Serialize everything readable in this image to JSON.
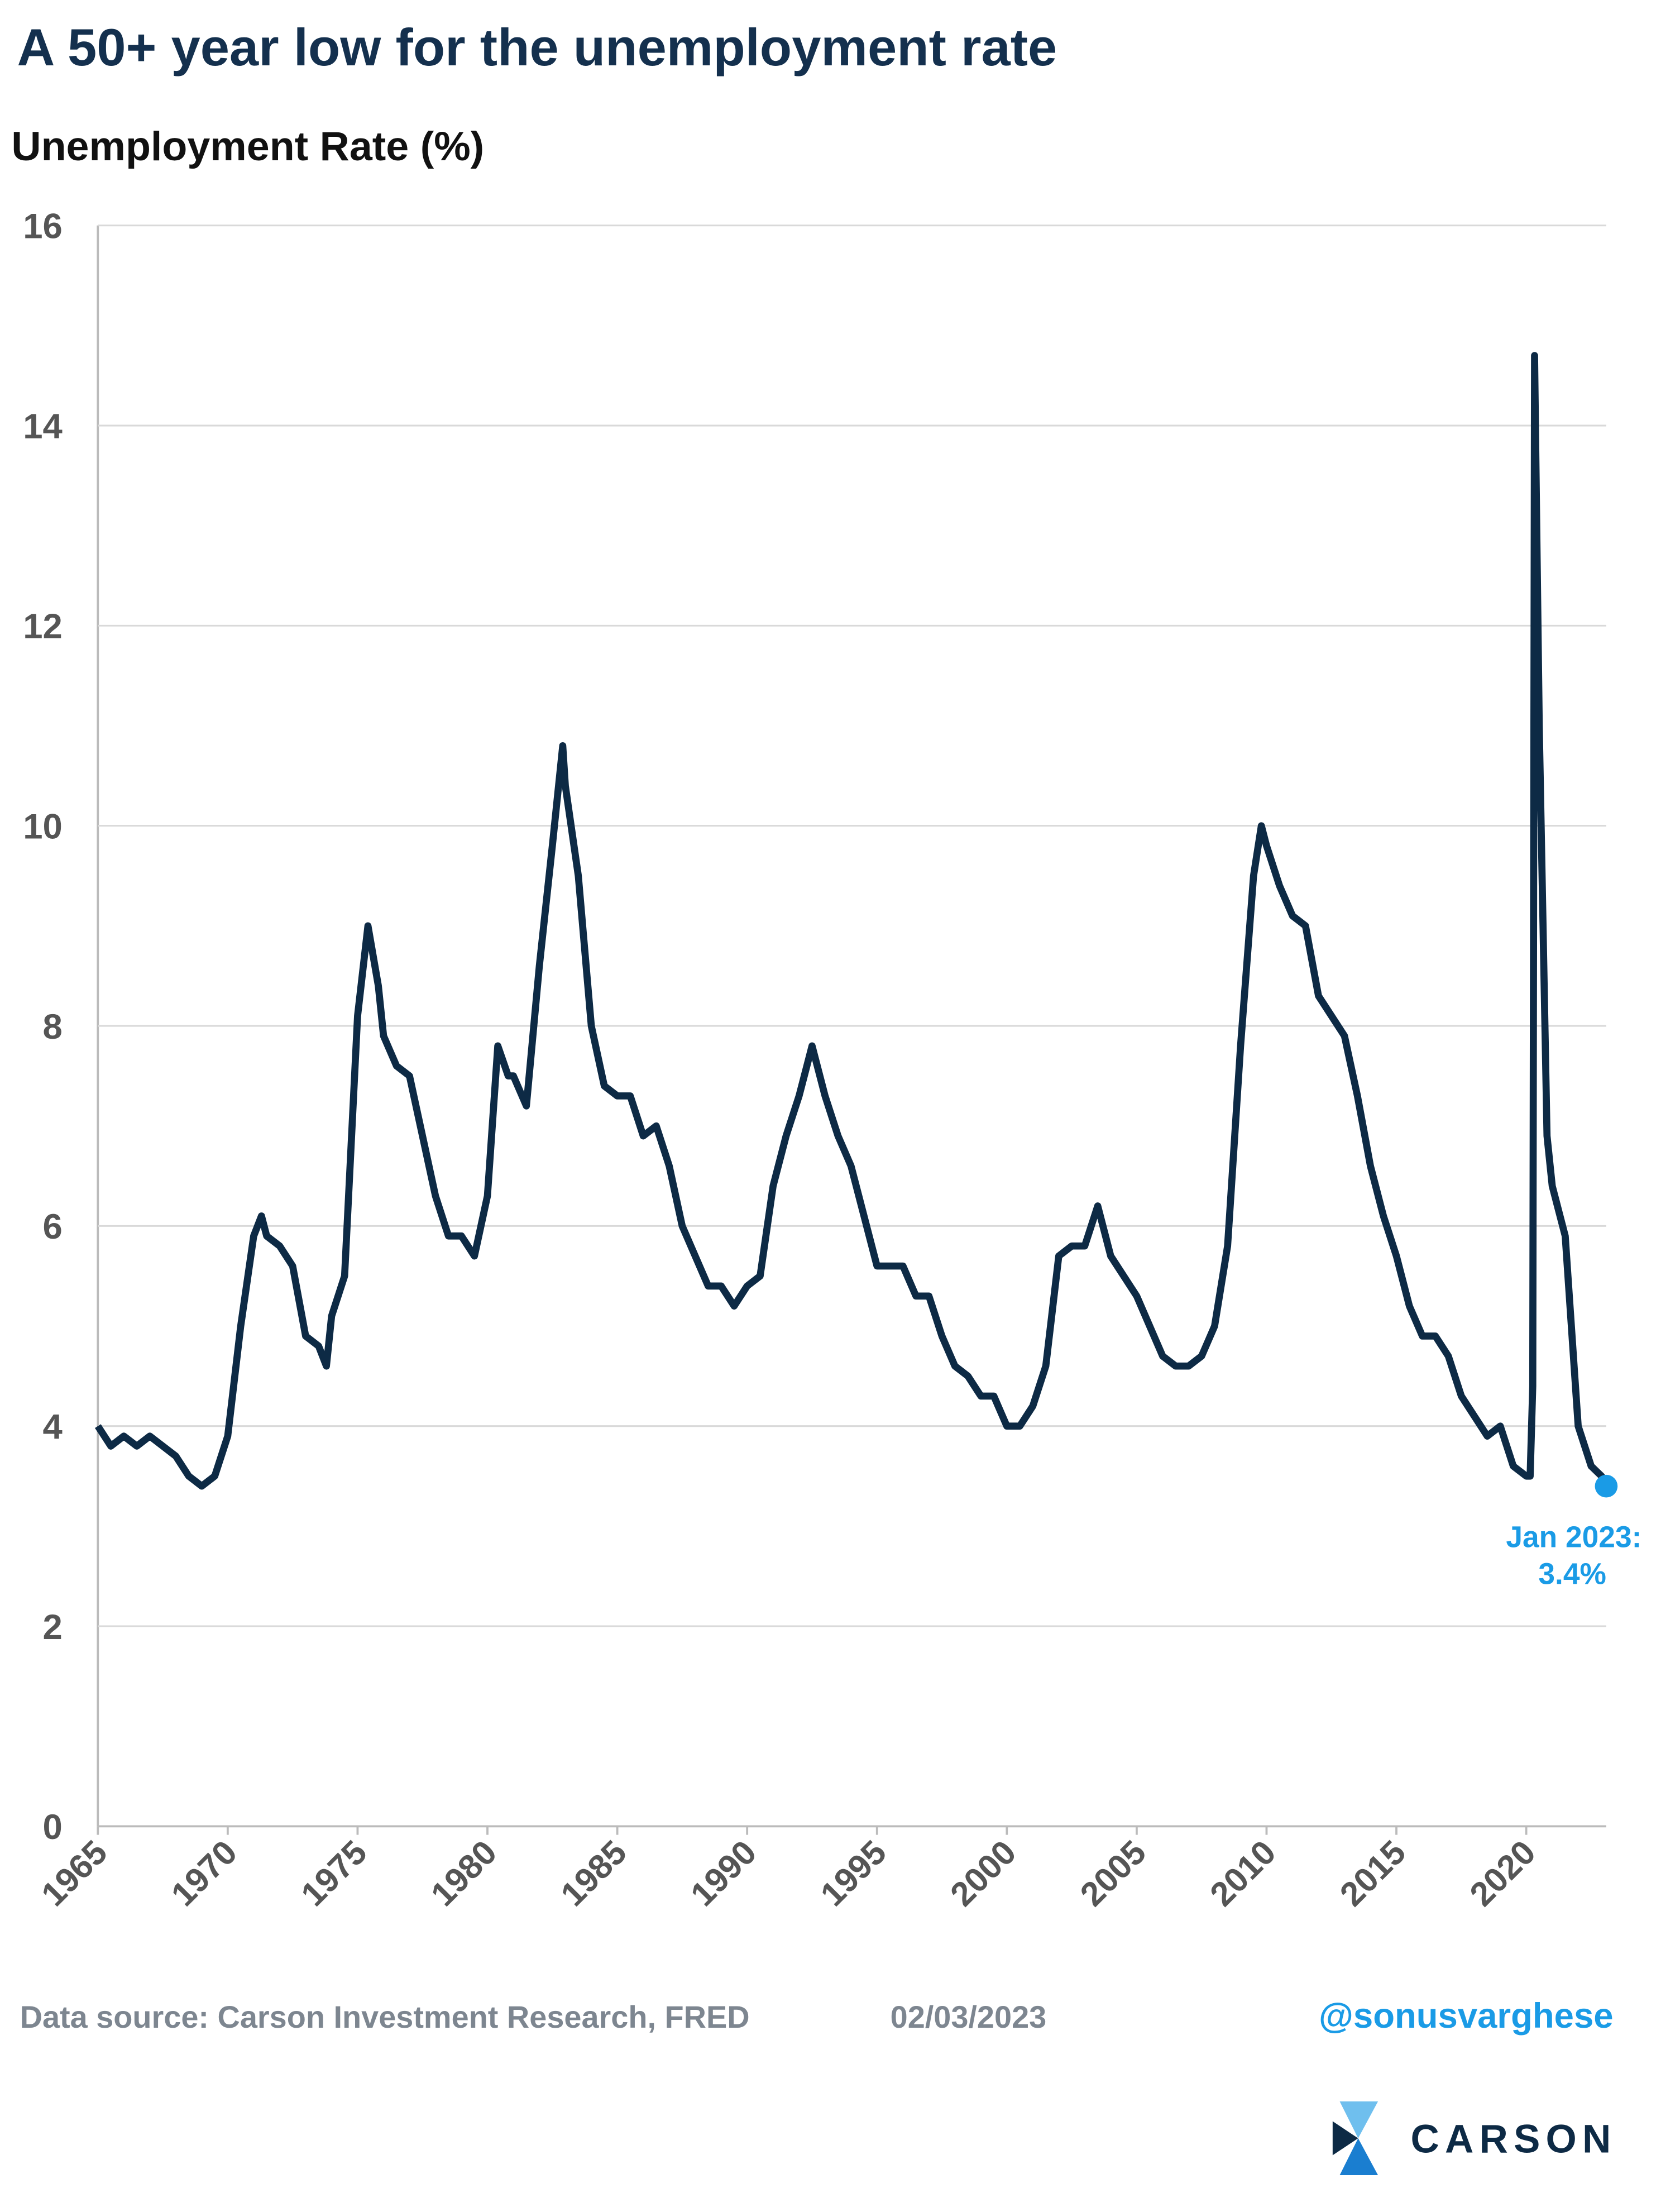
{
  "chart_data": {
    "type": "line",
    "title": "A 50+ year low for the unemployment rate",
    "y_axis_label": "Unemployment Rate (%)",
    "x": [
      1965.0,
      1965.5,
      1966.0,
      1966.5,
      1967.0,
      1967.5,
      1968.0,
      1968.5,
      1969.0,
      1969.5,
      1970.0,
      1970.5,
      1971.0,
      1971.3,
      1971.5,
      1972.0,
      1972.5,
      1973.0,
      1973.5,
      1973.8,
      1974.0,
      1974.5,
      1975.0,
      1975.4,
      1975.8,
      1976.0,
      1976.5,
      1977.0,
      1977.5,
      1978.0,
      1978.5,
      1979.0,
      1979.5,
      1980.0,
      1980.4,
      1980.8,
      1981.0,
      1981.5,
      1982.0,
      1982.5,
      1982.9,
      1983.0,
      1983.5,
      1984.0,
      1984.5,
      1985.0,
      1985.5,
      1986.0,
      1986.5,
      1987.0,
      1987.5,
      1988.0,
      1988.5,
      1989.0,
      1989.5,
      1990.0,
      1990.5,
      1991.0,
      1991.5,
      1992.0,
      1992.5,
      1993.0,
      1993.5,
      1994.0,
      1994.5,
      1995.0,
      1995.5,
      1996.0,
      1996.5,
      1997.0,
      1997.5,
      1998.0,
      1998.5,
      1999.0,
      1999.5,
      2000.0,
      2000.5,
      2001.0,
      2001.5,
      2002.0,
      2002.5,
      2003.0,
      2003.5,
      2004.0,
      2004.5,
      2005.0,
      2005.5,
      2006.0,
      2006.5,
      2007.0,
      2007.5,
      2008.0,
      2008.5,
      2009.0,
      2009.5,
      2009.8,
      2010.0,
      2010.5,
      2011.0,
      2011.5,
      2012.0,
      2012.5,
      2013.0,
      2013.5,
      2014.0,
      2014.5,
      2015.0,
      2015.5,
      2016.0,
      2016.5,
      2017.0,
      2017.5,
      2018.0,
      2018.5,
      2019.0,
      2019.5,
      2020.0,
      2020.15,
      2020.25,
      2020.32,
      2020.5,
      2020.8,
      2021.0,
      2021.5,
      2022.0,
      2022.5,
      2022.9,
      2023.08
    ],
    "values": [
      4.0,
      3.8,
      3.9,
      3.8,
      3.9,
      3.8,
      3.7,
      3.5,
      3.4,
      3.5,
      3.9,
      5.0,
      5.9,
      6.1,
      5.9,
      5.8,
      5.6,
      4.9,
      4.8,
      4.6,
      5.1,
      5.5,
      8.1,
      9.0,
      8.4,
      7.9,
      7.6,
      7.5,
      6.9,
      6.3,
      5.9,
      5.9,
      5.7,
      6.3,
      7.8,
      7.5,
      7.5,
      7.2,
      8.6,
      9.8,
      10.8,
      10.4,
      9.5,
      8.0,
      7.4,
      7.3,
      7.3,
      6.9,
      7.0,
      6.6,
      6.0,
      5.7,
      5.4,
      5.4,
      5.2,
      5.4,
      5.5,
      6.4,
      6.9,
      7.3,
      7.8,
      7.3,
      6.9,
      6.6,
      6.1,
      5.6,
      5.6,
      5.6,
      5.3,
      5.3,
      4.9,
      4.6,
      4.5,
      4.3,
      4.3,
      4.0,
      4.0,
      4.2,
      4.6,
      5.7,
      5.8,
      5.8,
      6.2,
      5.7,
      5.5,
      5.3,
      5.0,
      4.7,
      4.6,
      4.6,
      4.7,
      5.0,
      5.8,
      7.8,
      9.5,
      10.0,
      9.8,
      9.4,
      9.1,
      9.0,
      8.3,
      8.1,
      7.9,
      7.3,
      6.6,
      6.1,
      5.7,
      5.2,
      4.9,
      4.9,
      4.7,
      4.3,
      4.1,
      3.9,
      4.0,
      3.6,
      3.5,
      3.5,
      4.4,
      14.7,
      11.0,
      6.9,
      6.4,
      5.9,
      4.0,
      3.6,
      3.5,
      3.4
    ],
    "color": "#0d2a45",
    "marker_color": "#1a9be6",
    "annotation": [
      "Jan 2023:",
      "3.4%"
    ],
    "xlim": [
      1965,
      2023.08
    ],
    "xticks": [
      1965,
      1970,
      1975,
      1980,
      1985,
      1990,
      1995,
      2000,
      2005,
      2010,
      2015,
      2020
    ],
    "ylim": [
      0,
      16
    ],
    "yticks": [
      0,
      2,
      4,
      6,
      8,
      10,
      12,
      14,
      16
    ],
    "grid": true
  },
  "footer": {
    "source": "Data source: Carson Investment Research, FRED",
    "date": "02/03/2023",
    "handle": "@sonusvarghese"
  },
  "logo": "CARSON"
}
